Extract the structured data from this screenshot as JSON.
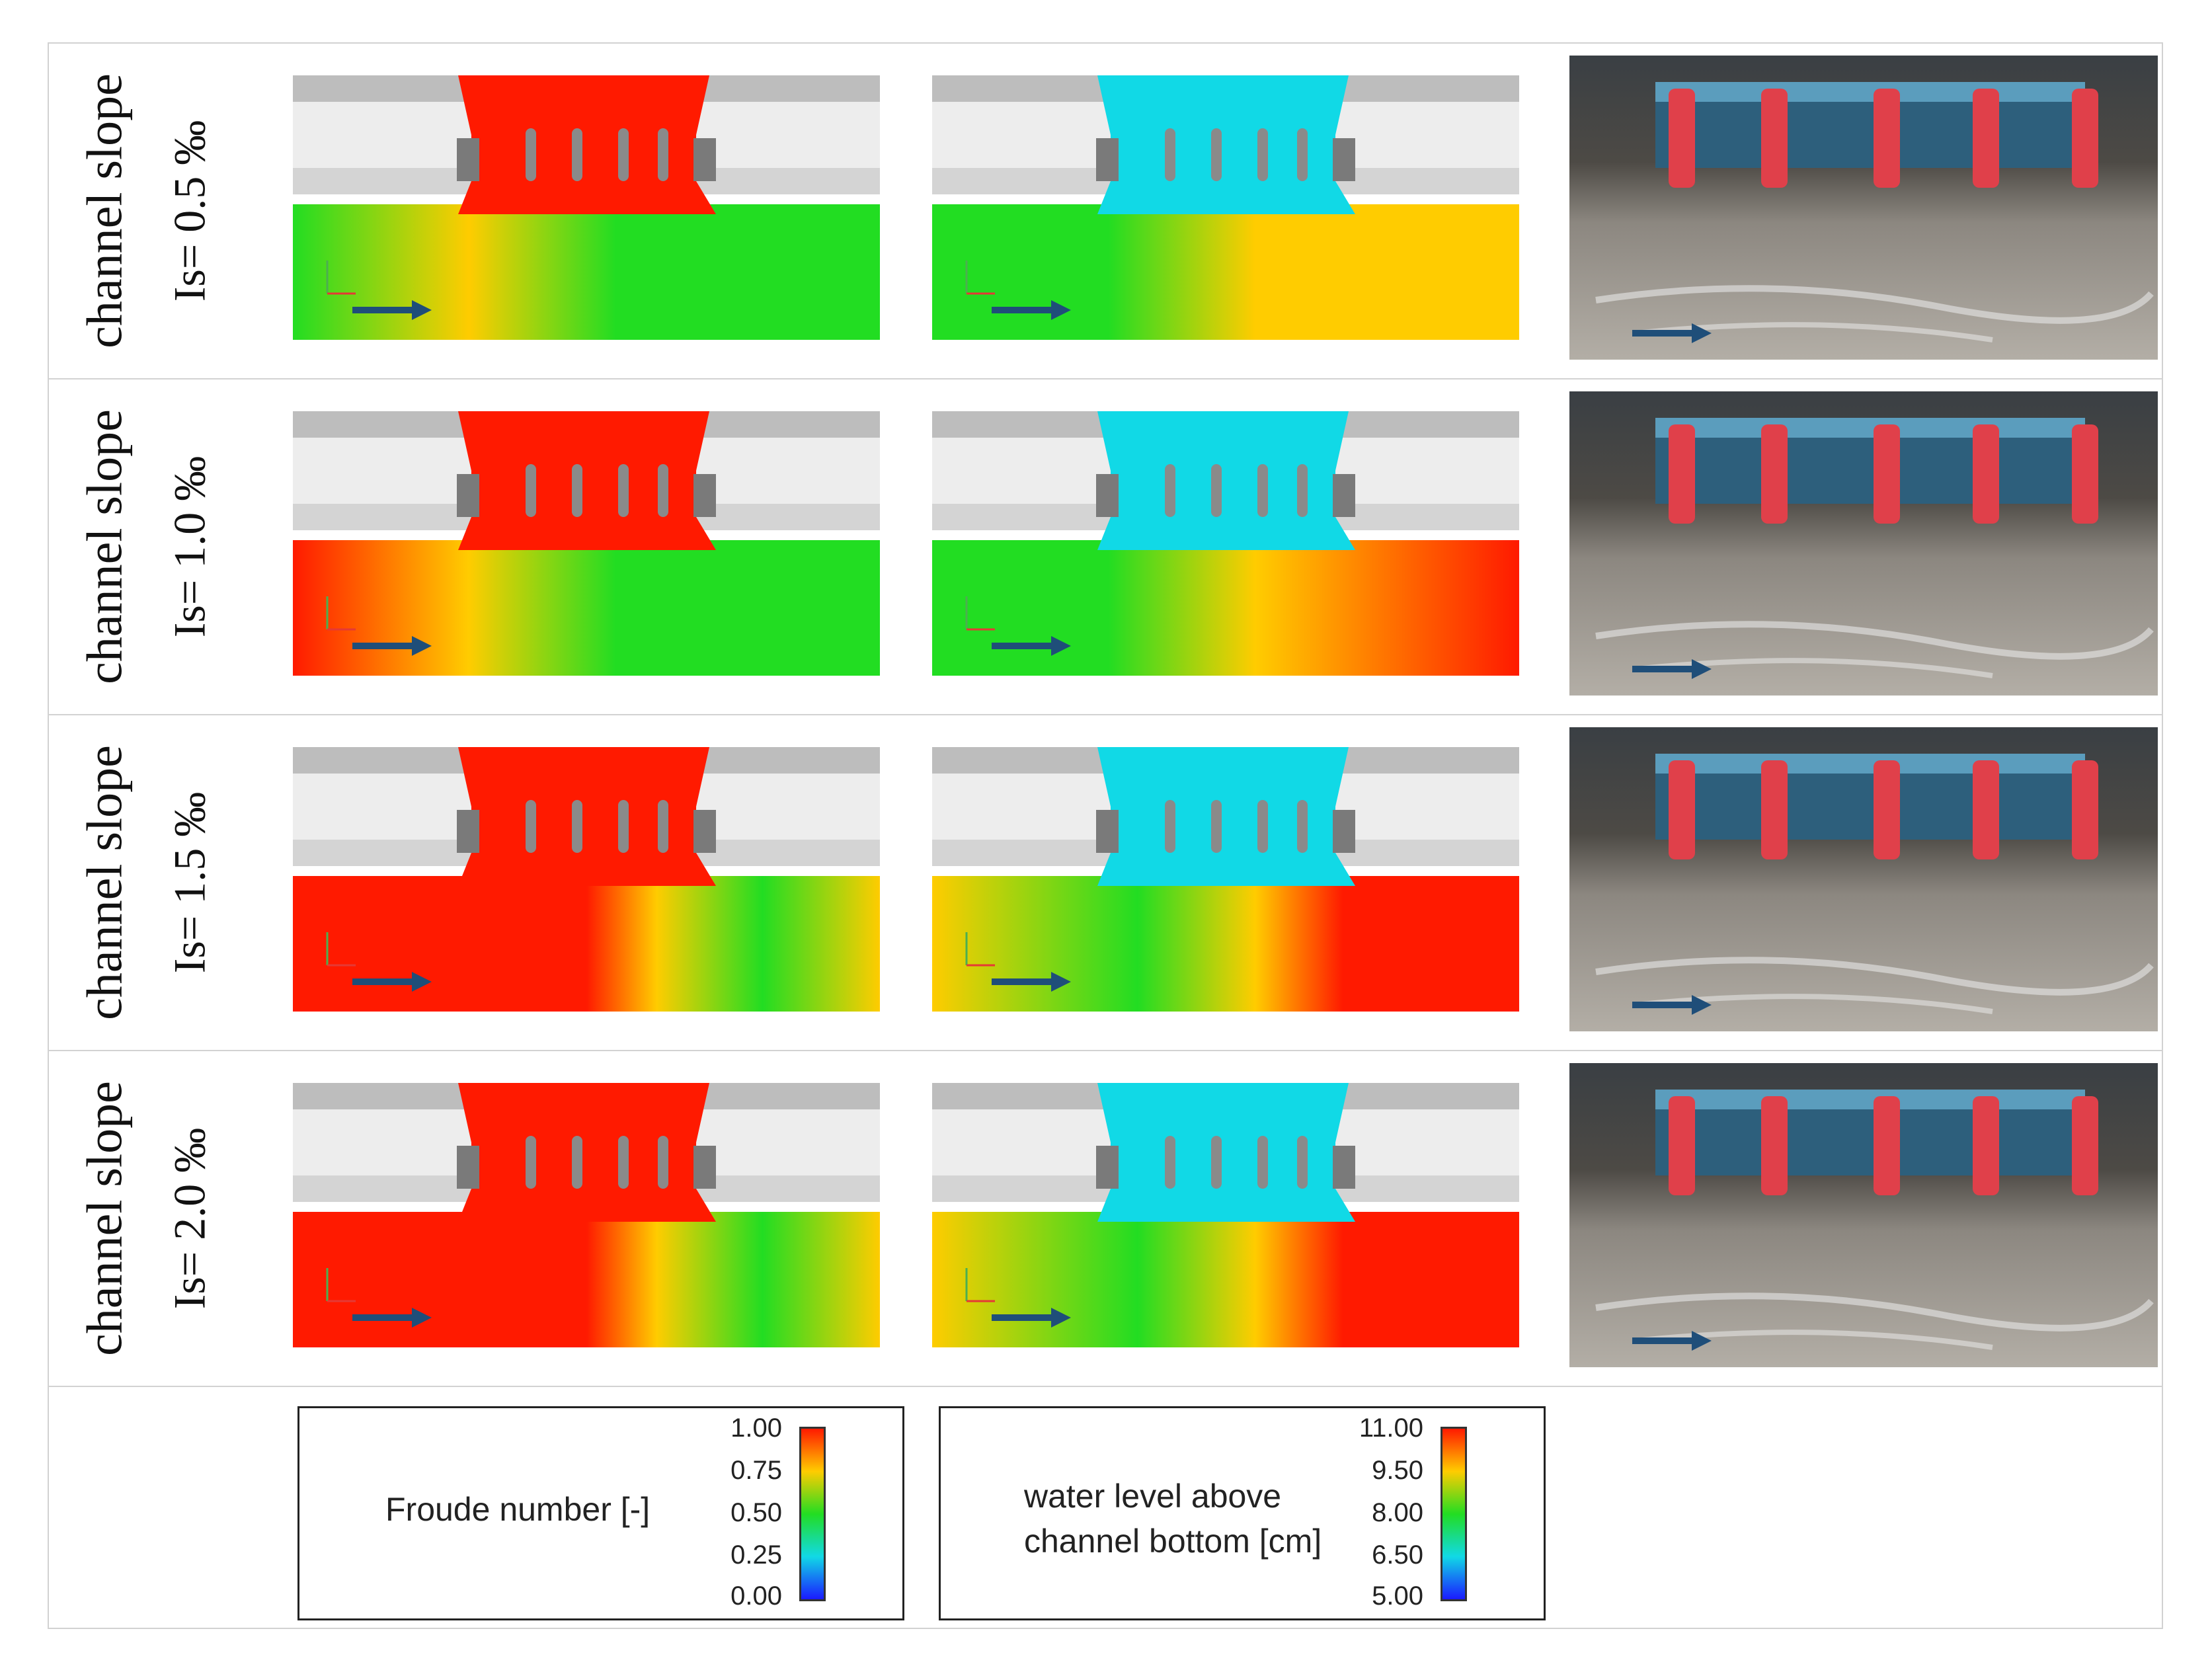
{
  "rows": [
    {
      "label": "channel slope",
      "slope_text": "Is= 0.5 ‰",
      "slope_value": 0.5
    },
    {
      "label": "channel slope",
      "slope_text": "Is= 1.0 ‰",
      "slope_value": 1.0
    },
    {
      "label": "channel slope",
      "slope_text": "Is= 1.5 ‰",
      "slope_value": 1.5
    },
    {
      "label": "channel slope",
      "slope_text": "Is= 2.0 ‰",
      "slope_value": 2.0
    }
  ],
  "legends": {
    "froude": {
      "title": "Froude number [-]",
      "ticks": [
        "1.00",
        "0.75",
        "0.50",
        "0.25",
        "0.00"
      ]
    },
    "water": {
      "title_line1": "water level above",
      "title_line2": "channel bottom [cm]",
      "ticks": [
        "11.00",
        "9.50",
        "8.00",
        "6.50",
        "5.00"
      ]
    }
  },
  "colors": {
    "high": "#ff1a00",
    "upper": "#ffcc00",
    "mid": "#22dd22",
    "lower": "#11d9e6",
    "low": "#1a1aff",
    "flow_arrow": "#1f4e79",
    "groyne": "#e0404a",
    "wall": "#b8b8b8"
  }
}
